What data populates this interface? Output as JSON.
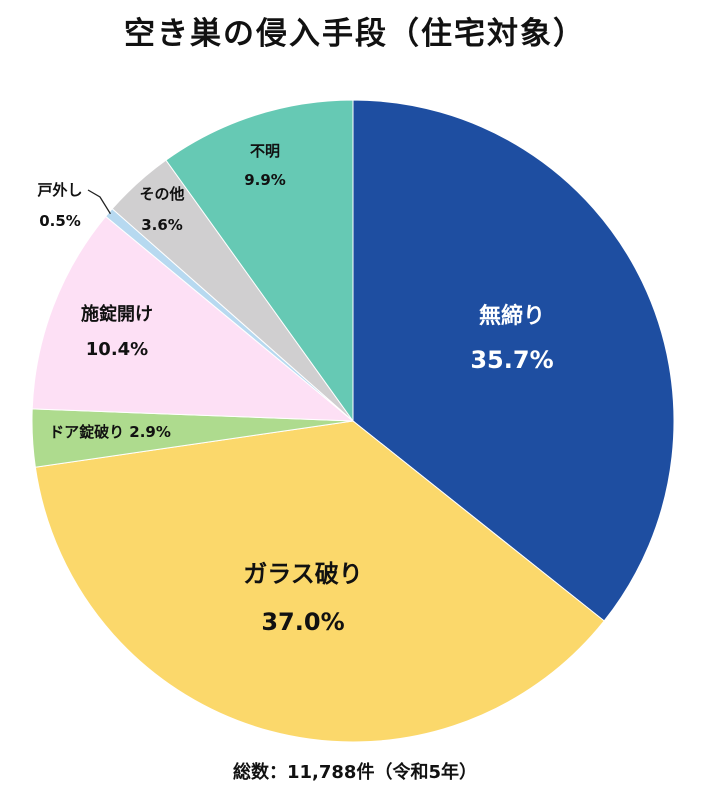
{
  "title": "空き巣の侵入手段（住宅対象）",
  "footnote": "総数：11,788件（令和5年）",
  "chart_data": {
    "type": "pie",
    "title": "空き巣の侵入手段（住宅対象）",
    "total_note": "総数：11,788件（令和5年）",
    "start": "12 o'clock",
    "direction": "clockwise",
    "slices": [
      {
        "name": "無締り",
        "value": 35.7,
        "pct_label": "35.7%",
        "color": "#1e4ea1",
        "text_color": "#ffffff"
      },
      {
        "name": "ガラス破り",
        "value": 37.0,
        "pct_label": "37.0%",
        "color": "#fbd86b",
        "text_color": "#111111"
      },
      {
        "name": "ドア錠破り",
        "value": 2.9,
        "pct_label": "2.9%",
        "color": "#aedb8e",
        "text_color": "#111111"
      },
      {
        "name": "施錠開け",
        "value": 10.4,
        "pct_label": "10.4%",
        "color": "#fde0f5",
        "text_color": "#111111"
      },
      {
        "name": "戸外し",
        "value": 0.5,
        "pct_label": "0.5%",
        "color": "#b7d9f0",
        "text_color": "#111111"
      },
      {
        "name": "その他",
        "value": 3.6,
        "pct_label": "3.6%",
        "color": "#d0cfd0",
        "text_color": "#111111"
      },
      {
        "name": "不明",
        "value": 9.9,
        "pct_label": "9.9%",
        "color": "#66c9b4",
        "text_color": "#111111"
      }
    ]
  }
}
